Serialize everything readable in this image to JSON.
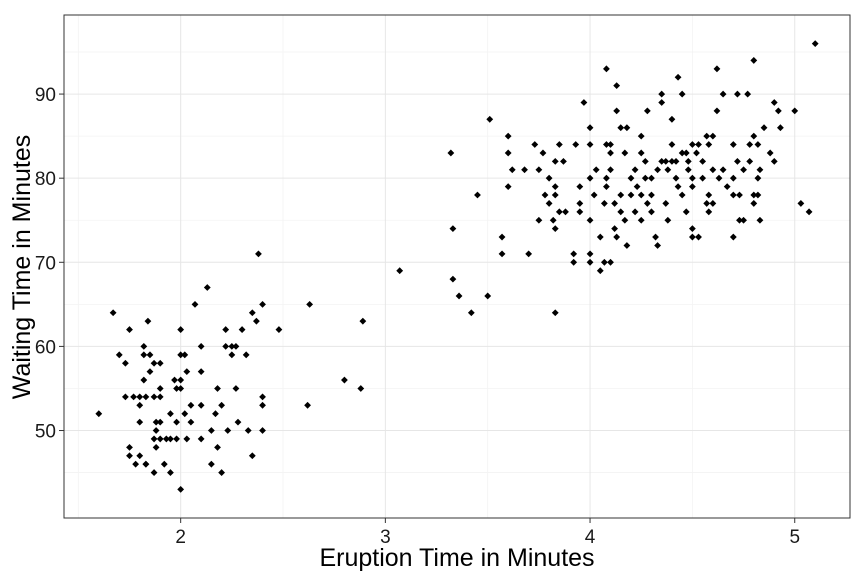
{
  "chart_data": {
    "type": "scatter",
    "xlabel": "Eruption Time in Minutes",
    "ylabel": "Waiting Time in Minutes",
    "xlim": [
      1.43,
      5.27
    ],
    "ylim": [
      39.6,
      99.4
    ],
    "x_ticks": [
      2,
      3,
      4,
      5
    ],
    "y_ticks": [
      50,
      60,
      70,
      80,
      90
    ],
    "grid": true,
    "point_color": "#000000",
    "points": [
      [
        1.6,
        52
      ],
      [
        1.67,
        64
      ],
      [
        1.7,
        59
      ],
      [
        1.73,
        54
      ],
      [
        1.73,
        58
      ],
      [
        1.75,
        62
      ],
      [
        1.75,
        48
      ],
      [
        1.75,
        47
      ],
      [
        1.77,
        54
      ],
      [
        1.78,
        46
      ],
      [
        1.8,
        54
      ],
      [
        1.8,
        53
      ],
      [
        1.8,
        51
      ],
      [
        1.8,
        47
      ],
      [
        1.82,
        56
      ],
      [
        1.82,
        60
      ],
      [
        1.82,
        59
      ],
      [
        1.83,
        46
      ],
      [
        1.83,
        54
      ],
      [
        1.83,
        46
      ],
      [
        1.84,
        63
      ],
      [
        1.85,
        57
      ],
      [
        1.85,
        59
      ],
      [
        1.87,
        58
      ],
      [
        1.87,
        54
      ],
      [
        1.87,
        49
      ],
      [
        1.87,
        45
      ],
      [
        1.88,
        51
      ],
      [
        1.88,
        50
      ],
      [
        1.88,
        48
      ],
      [
        1.9,
        58
      ],
      [
        1.9,
        55
      ],
      [
        1.9,
        54
      ],
      [
        1.9,
        51
      ],
      [
        1.9,
        49
      ],
      [
        1.92,
        46
      ],
      [
        1.93,
        49
      ],
      [
        1.95,
        45
      ],
      [
        1.95,
        52
      ],
      [
        1.95,
        49
      ],
      [
        1.97,
        56
      ],
      [
        1.98,
        55
      ],
      [
        1.98,
        51
      ],
      [
        1.98,
        49
      ],
      [
        2.0,
        62
      ],
      [
        2.0,
        59
      ],
      [
        2.0,
        56
      ],
      [
        2.0,
        55
      ],
      [
        2.0,
        43
      ],
      [
        2.02,
        59
      ],
      [
        2.02,
        52
      ],
      [
        2.03,
        57
      ],
      [
        2.03,
        49
      ],
      [
        2.05,
        53
      ],
      [
        2.05,
        51
      ],
      [
        2.07,
        65
      ],
      [
        2.1,
        60
      ],
      [
        2.1,
        57
      ],
      [
        2.1,
        53
      ],
      [
        2.1,
        49
      ],
      [
        2.13,
        67
      ],
      [
        2.15,
        50
      ],
      [
        2.15,
        46
      ],
      [
        2.17,
        52
      ],
      [
        2.18,
        48
      ],
      [
        2.18,
        55
      ],
      [
        2.2,
        53
      ],
      [
        2.2,
        45
      ],
      [
        2.22,
        62
      ],
      [
        2.22,
        60
      ],
      [
        2.23,
        50
      ],
      [
        2.25,
        59
      ],
      [
        2.25,
        60
      ],
      [
        2.27,
        60
      ],
      [
        2.27,
        55
      ],
      [
        2.28,
        51
      ],
      [
        2.3,
        62
      ],
      [
        2.32,
        59
      ],
      [
        2.33,
        50
      ],
      [
        2.35,
        64
      ],
      [
        2.35,
        47
      ],
      [
        2.37,
        63
      ],
      [
        2.38,
        71
      ],
      [
        2.4,
        65
      ],
      [
        2.4,
        54
      ],
      [
        2.4,
        53
      ],
      [
        2.4,
        50
      ],
      [
        2.48,
        62
      ],
      [
        2.62,
        53
      ],
      [
        2.63,
        65
      ],
      [
        2.8,
        56
      ],
      [
        2.88,
        55
      ],
      [
        2.89,
        63
      ],
      [
        3.07,
        69
      ],
      [
        3.32,
        83
      ],
      [
        3.33,
        74
      ],
      [
        3.33,
        68
      ],
      [
        3.36,
        66
      ],
      [
        3.42,
        64
      ],
      [
        3.45,
        78
      ],
      [
        3.5,
        66
      ],
      [
        3.51,
        87
      ],
      [
        3.57,
        73
      ],
      [
        3.57,
        71
      ],
      [
        3.6,
        85
      ],
      [
        3.6,
        83
      ],
      [
        3.6,
        79
      ],
      [
        3.62,
        81
      ],
      [
        3.68,
        81
      ],
      [
        3.7,
        71
      ],
      [
        3.73,
        84
      ],
      [
        3.75,
        75
      ],
      [
        3.75,
        81
      ],
      [
        3.77,
        83
      ],
      [
        3.78,
        78
      ],
      [
        3.8,
        77
      ],
      [
        3.8,
        80
      ],
      [
        3.82,
        75
      ],
      [
        3.83,
        64
      ],
      [
        3.83,
        82
      ],
      [
        3.83,
        74
      ],
      [
        3.83,
        79
      ],
      [
        3.83,
        78
      ],
      [
        3.85,
        76
      ],
      [
        3.85,
        84
      ],
      [
        3.87,
        82
      ],
      [
        3.88,
        76
      ],
      [
        3.92,
        71
      ],
      [
        3.92,
        70
      ],
      [
        3.93,
        84
      ],
      [
        3.95,
        77
      ],
      [
        3.95,
        79
      ],
      [
        3.95,
        76
      ],
      [
        3.97,
        89
      ],
      [
        4.0,
        86
      ],
      [
        4.0,
        84
      ],
      [
        4.0,
        80
      ],
      [
        4.0,
        75
      ],
      [
        4.0,
        71
      ],
      [
        4.0,
        70
      ],
      [
        4.02,
        78
      ],
      [
        4.03,
        81
      ],
      [
        4.05,
        73
      ],
      [
        4.05,
        69
      ],
      [
        4.07,
        77
      ],
      [
        4.07,
        70
      ],
      [
        4.08,
        93
      ],
      [
        4.08,
        84
      ],
      [
        4.08,
        79
      ],
      [
        4.08,
        80
      ],
      [
        4.1,
        83
      ],
      [
        4.1,
        81
      ],
      [
        4.1,
        84
      ],
      [
        4.1,
        70
      ],
      [
        4.12,
        77
      ],
      [
        4.12,
        74
      ],
      [
        4.13,
        91
      ],
      [
        4.13,
        88
      ],
      [
        4.13,
        73
      ],
      [
        4.15,
        86
      ],
      [
        4.15,
        78
      ],
      [
        4.15,
        76
      ],
      [
        4.17,
        83
      ],
      [
        4.17,
        75
      ],
      [
        4.18,
        86
      ],
      [
        4.18,
        72
      ],
      [
        4.2,
        80
      ],
      [
        4.2,
        78
      ],
      [
        4.22,
        76
      ],
      [
        4.22,
        81
      ],
      [
        4.23,
        79
      ],
      [
        4.25,
        85
      ],
      [
        4.25,
        83
      ],
      [
        4.25,
        78
      ],
      [
        4.25,
        75
      ],
      [
        4.27,
        82
      ],
      [
        4.27,
        80
      ],
      [
        4.28,
        77
      ],
      [
        4.28,
        88
      ],
      [
        4.3,
        78
      ],
      [
        4.3,
        76
      ],
      [
        4.3,
        80
      ],
      [
        4.32,
        73
      ],
      [
        4.33,
        72
      ],
      [
        4.33,
        81
      ],
      [
        4.35,
        90
      ],
      [
        4.35,
        89
      ],
      [
        4.35,
        82
      ],
      [
        4.37,
        82
      ],
      [
        4.37,
        77
      ],
      [
        4.38,
        75
      ],
      [
        4.38,
        81
      ],
      [
        4.4,
        87
      ],
      [
        4.4,
        84
      ],
      [
        4.4,
        82
      ],
      [
        4.42,
        80
      ],
      [
        4.42,
        82
      ],
      [
        4.43,
        92
      ],
      [
        4.43,
        79
      ],
      [
        4.45,
        90
      ],
      [
        4.45,
        83
      ],
      [
        4.45,
        78
      ],
      [
        4.47,
        76
      ],
      [
        4.47,
        83
      ],
      [
        4.48,
        81
      ],
      [
        4.48,
        82
      ],
      [
        4.5,
        84
      ],
      [
        4.5,
        80
      ],
      [
        4.5,
        74
      ],
      [
        4.5,
        73
      ],
      [
        4.5,
        79
      ],
      [
        4.52,
        83
      ],
      [
        4.53,
        84
      ],
      [
        4.53,
        73
      ],
      [
        4.55,
        82
      ],
      [
        4.55,
        80
      ],
      [
        4.57,
        85
      ],
      [
        4.57,
        77
      ],
      [
        4.58,
        84
      ],
      [
        4.58,
        76
      ],
      [
        4.58,
        78
      ],
      [
        4.6,
        85
      ],
      [
        4.6,
        81
      ],
      [
        4.6,
        77
      ],
      [
        4.62,
        93
      ],
      [
        4.62,
        88
      ],
      [
        4.63,
        80
      ],
      [
        4.65,
        90
      ],
      [
        4.65,
        81
      ],
      [
        4.67,
        79
      ],
      [
        4.7,
        84
      ],
      [
        4.7,
        80
      ],
      [
        4.7,
        78
      ],
      [
        4.7,
        73
      ],
      [
        4.72,
        90
      ],
      [
        4.72,
        82
      ],
      [
        4.73,
        75
      ],
      [
        4.73,
        78
      ],
      [
        4.75,
        81
      ],
      [
        4.75,
        75
      ],
      [
        4.77,
        90
      ],
      [
        4.78,
        84
      ],
      [
        4.78,
        82
      ],
      [
        4.8,
        94
      ],
      [
        4.8,
        85
      ],
      [
        4.8,
        77
      ],
      [
        4.8,
        78
      ],
      [
        4.82,
        84
      ],
      [
        4.82,
        78
      ],
      [
        4.82,
        80
      ],
      [
        4.83,
        75
      ],
      [
        4.83,
        81
      ],
      [
        4.85,
        86
      ],
      [
        4.88,
        83
      ],
      [
        4.9,
        89
      ],
      [
        4.9,
        82
      ],
      [
        4.92,
        88
      ],
      [
        4.93,
        86
      ],
      [
        5.0,
        88
      ],
      [
        5.03,
        77
      ],
      [
        5.07,
        76
      ],
      [
        5.1,
        96
      ]
    ]
  }
}
